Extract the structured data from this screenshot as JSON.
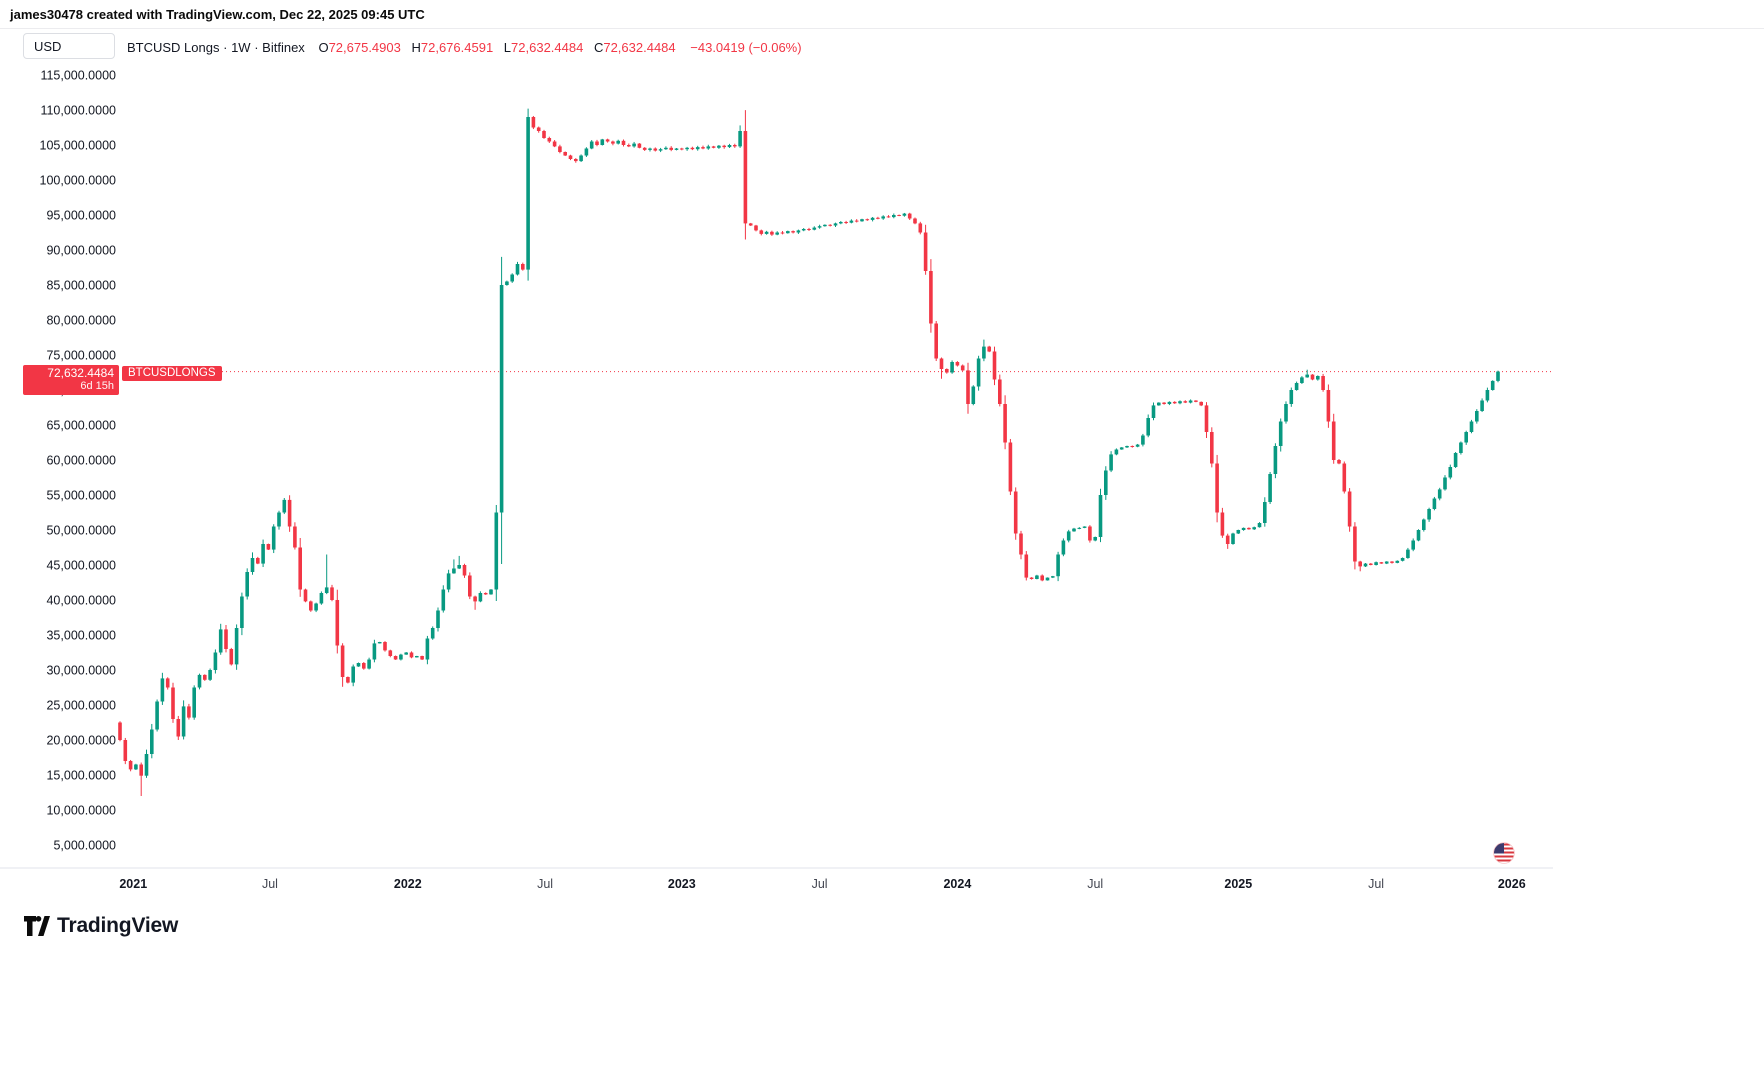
{
  "header": {
    "credit": "james30478 created with TradingView.com, Dec 22, 2025 09:45 UTC"
  },
  "toolbar": {
    "currency_label": "USD"
  },
  "legend": {
    "symbol": "BTCUSD Longs",
    "sep1": "·",
    "interval": "1W",
    "sep2": "·",
    "exchange": "Bitfinex",
    "open_label": "O",
    "open": "72,675.4903",
    "high_label": "H",
    "high": "72,676.4591",
    "low_label": "L",
    "low": "72,632.4484",
    "close_label": "C",
    "close": "72,632.4484",
    "change": "−43.0419 (−0.06%)"
  },
  "price_label": {
    "value": "72,632.4484",
    "countdown": "6d 15h"
  },
  "series_tag": "BTCUSDLONGS",
  "footer": {
    "brand": "TradingView"
  },
  "icons": {
    "flag": "us-flag-icon",
    "logo": "tradingview-logo-icon"
  },
  "colors": {
    "up": "#089981",
    "down": "#f23645",
    "accent": "#f23645",
    "text": "#131722",
    "muted": "#434651",
    "border": "#e0e3eb",
    "grid": "#f5f7fa"
  },
  "chart_data": {
    "type": "candlestick",
    "title": "BTCUSD Longs · 1W · Bitfinex",
    "current_price": 72632.4484,
    "ohlc_last": {
      "o": 72675.4903,
      "h": 72676.4591,
      "l": 72632.4484,
      "c": 72632.4484,
      "change": -43.0419,
      "change_pct": -0.06
    },
    "y_axis": {
      "min": 5000,
      "max": 115000,
      "tick_step": 5000,
      "decimals": 4
    },
    "x_axis": {
      "ticks": [
        {
          "label": "2021",
          "week": 2.5,
          "major": true
        },
        {
          "label": "Jul",
          "week": 28.3,
          "major": false
        },
        {
          "label": "2022",
          "week": 54.3,
          "major": true
        },
        {
          "label": "Jul",
          "week": 80.2,
          "major": false
        },
        {
          "label": "2023",
          "week": 106.0,
          "major": true
        },
        {
          "label": "Jul",
          "week": 132.0,
          "major": false
        },
        {
          "label": "2024",
          "week": 158.0,
          "major": true
        },
        {
          "label": "Jul",
          "week": 184.0,
          "major": false
        },
        {
          "label": "2025",
          "week": 211.0,
          "major": true
        },
        {
          "label": "Jul",
          "week": 237.0,
          "major": false
        },
        {
          "label": "2026",
          "week": 262.6,
          "major": true
        }
      ]
    },
    "first_open": 22500,
    "weekly_closes": [
      20000,
      17000,
      15800,
      16500,
      14900,
      18000,
      21500,
      25500,
      28800,
      27500,
      23000,
      20500,
      24800,
      23200,
      27500,
      29300,
      28600,
      30000,
      32500,
      35800,
      33000,
      30800,
      36000,
      40500,
      44000,
      46000,
      45200,
      48000,
      47200,
      50500,
      52500,
      54300,
      50500,
      47500,
      41500,
      39800,
      38500,
      39500,
      41000,
      41800,
      40000,
      33500,
      29000,
      28200,
      30500,
      31000,
      30200,
      31500,
      33800,
      34000,
      32800,
      32000,
      31500,
      32200,
      32500,
      31800,
      32000,
      31500,
      34500,
      36000,
      38500,
      41500,
      43800,
      44500,
      45000,
      43500,
      40500,
      39800,
      41000,
      40800,
      41500,
      52500,
      85000,
      85500,
      86500,
      88000,
      87200,
      109000,
      107500,
      107000,
      106000,
      105500,
      104800,
      104000,
      103500,
      103000,
      102700,
      103500,
      104500,
      105500,
      105000,
      105800,
      105500,
      105200,
      105600,
      105000,
      104800,
      105200,
      104600,
      104300,
      104500,
      104200,
      104400,
      104600,
      104300,
      104500,
      104400,
      104600,
      104400,
      104700,
      104500,
      104800,
      104600,
      104900,
      104700,
      105000,
      104800,
      107000,
      93800,
      93500,
      92800,
      92300,
      92600,
      92200,
      92500,
      92400,
      92700,
      92500,
      92800,
      93000,
      92900,
      93200,
      93400,
      93600,
      93500,
      93800,
      94000,
      93900,
      94200,
      94100,
      94400,
      94300,
      94600,
      94500,
      94800,
      94700,
      95000,
      94900,
      95200,
      94500,
      93800,
      92500,
      87000,
      79500,
      74500,
      73000,
      72500,
      74000,
      73500,
      72800,
      68000,
      70500,
      74500,
      76200,
      75500,
      71500,
      68000,
      62500,
      55500,
      49500,
      46500,
      43200,
      43000,
      43500,
      42800,
      43200,
      43400,
      46500,
      48500,
      49800,
      50200,
      50300,
      50500,
      48500,
      49000,
      55000,
      58500,
      60800,
      61500,
      61800,
      62000,
      61900,
      62200,
      63500,
      66000,
      67800,
      68200,
      68000,
      68300,
      68100,
      68400,
      68200,
      68500,
      68300,
      67800,
      64000,
      59500,
      52500,
      49200,
      48000,
      49500,
      50000,
      50300,
      50100,
      50400,
      51000,
      54000,
      58000,
      62000,
      65500,
      68000,
      70000,
      71000,
      71800,
      72200,
      71500,
      72000,
      70000,
      65500,
      60000,
      59500,
      55500,
      50500,
      45500,
      44800,
      45200,
      45000,
      45400,
      45200,
      45500,
      45300,
      45600,
      46000,
      47200,
      48500,
      50000,
      51500,
      53000,
      54500,
      55800,
      57500,
      59000,
      61000,
      62500,
      64000,
      65500,
      67000,
      68500,
      70000,
      71300,
      72632.4484
    ],
    "wick_overrides": {
      "4": {
        "low": 12000
      },
      "8": {
        "high": 29600
      },
      "19": {
        "high": 36600
      },
      "25": {
        "high": 46800
      },
      "39": {
        "high": 46500
      },
      "42": {
        "low": 27600
      },
      "63": {
        "high": 45800
      },
      "64": {
        "high": 46300
      },
      "67": {
        "low": 38600
      },
      "77": {
        "high": 110200
      },
      "117": {
        "high": 107800
      },
      "155": {
        "low": 71600
      },
      "160": {
        "low": 66600
      },
      "163": {
        "high": 77200
      },
      "209": {
        "low": 47300
      },
      "224": {
        "high": 72900
      },
      "234": {
        "low": 44100
      }
    }
  }
}
